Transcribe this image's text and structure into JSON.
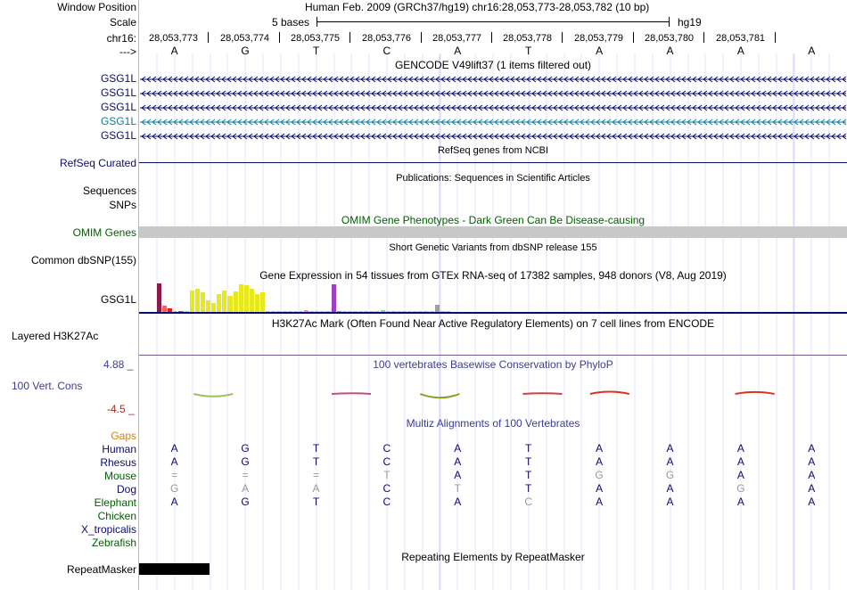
{
  "colors": {
    "gene_blue": "#0b0b70",
    "gene_teal": "#0b7d9c",
    "omim_green": "#006000",
    "cons_blue": "#3c3c96",
    "cons_red": "#a02828",
    "gaps_orange": "#e08000",
    "guideline": "#d0d0ff",
    "omim_gray": "#c8c8c8"
  },
  "header": {
    "window_position_label": "Window Position",
    "window_position_value": "Human Feb. 2009 (GRCh37/hg19)   chr16:28,053,773-28,053,782 (10 bp)",
    "scale_label": "Scale",
    "scale_text": "5 bases",
    "scale_assembly": "hg19",
    "chrom_label": "chr16:",
    "strand_label": "--->",
    "positions": [
      "28,053,773",
      "28,053,774",
      "28,053,775",
      "28,053,776",
      "28,053,777",
      "28,053,778",
      "28,053,779",
      "28,053,780",
      "28,053,781"
    ],
    "bases": [
      "A",
      "G",
      "T",
      "C",
      "A",
      "T",
      "A",
      "A",
      "A",
      "A"
    ]
  },
  "gencode": {
    "title": "GENCODE V49lift37 (1 items filtered out)",
    "genes": [
      {
        "label": "GSG1L",
        "color": "#0b0b70"
      },
      {
        "label": "GSG1L",
        "color": "#0b0b70"
      },
      {
        "label": "GSG1L",
        "color": "#0b0b70"
      },
      {
        "label": "GSG1L",
        "color": "#0b7d9c"
      },
      {
        "label": "GSG1L",
        "color": "#0b0b70"
      }
    ]
  },
  "refseq": {
    "title": "RefSeq genes from NCBI",
    "label": "RefSeq Curated"
  },
  "publications": {
    "title": "Publications: Sequences in Scientific Articles",
    "label_sequences": "Sequences",
    "label_snps": "SNPs"
  },
  "omim": {
    "title": "OMIM Gene Phenotypes - Dark Green Can Be Disease-causing",
    "label": "OMIM Genes"
  },
  "dbsnp": {
    "title": "Short Genetic Variants from dbSNP release 155",
    "label": "Common dbSNP(155)"
  },
  "gtex": {
    "title": "Gene Expression in 54 tissues from GTEx RNA-seq of 17382 samples, 948 donors (V8, Aug 2019)",
    "label": "GSG1L",
    "levels": [
      {
        "v": 1.0,
        "c": "#8b1a4a"
      },
      {
        "v": 0.22,
        "c": "#ff6050"
      },
      {
        "v": 0.12,
        "c": "#e02020"
      },
      {
        "v": 0.02,
        "c": "#ffb080"
      },
      {
        "v": 0.02,
        "c": "#e04040"
      },
      {
        "v": 0.02,
        "c": "#c0c0c0"
      },
      {
        "v": 0.75,
        "c": "#e8e820"
      },
      {
        "v": 0.82,
        "c": "#e8e820"
      },
      {
        "v": 0.7,
        "c": "#e8e820"
      },
      {
        "v": 0.4,
        "c": "#e8e820"
      },
      {
        "v": 0.32,
        "c": "#e8e820"
      },
      {
        "v": 0.62,
        "c": "#e8e820"
      },
      {
        "v": 0.75,
        "c": "#e8e820"
      },
      {
        "v": 0.55,
        "c": "#e8e820"
      },
      {
        "v": 0.72,
        "c": "#e8e820"
      },
      {
        "v": 0.98,
        "c": "#e8e820"
      },
      {
        "v": 0.95,
        "c": "#e8e820"
      },
      {
        "v": 0.8,
        "c": "#e8e820"
      },
      {
        "v": 0.62,
        "c": "#e8e820"
      },
      {
        "v": 0.68,
        "c": "#e8e820"
      },
      {
        "v": 0.02,
        "c": "#c0c0c0"
      },
      {
        "v": 0.02,
        "c": "#c0c0c0"
      },
      {
        "v": 0.02,
        "c": "#c0c0c0"
      },
      {
        "v": 0.02,
        "c": "#c0c0c0"
      },
      {
        "v": 0.02,
        "c": "#c0c0c0"
      },
      {
        "v": 0.02,
        "c": "#c0c0c0"
      },
      {
        "v": 0.02,
        "c": "#c0c0c0"
      },
      {
        "v": 0.05,
        "c": "#ff80c0"
      },
      {
        "v": 0.04,
        "c": "#c0c0c0"
      },
      {
        "v": 0.03,
        "c": "#c0c0c0"
      },
      {
        "v": 0.04,
        "c": "#c0c0c0"
      },
      {
        "v": 0.03,
        "c": "#c0c0c0"
      },
      {
        "v": 0.98,
        "c": "#a040c0"
      },
      {
        "v": 0.04,
        "c": "#60c060"
      },
      {
        "v": 0.03,
        "c": "#c0c0c0"
      },
      {
        "v": 0.03,
        "c": "#c0c0c0"
      },
      {
        "v": 0.03,
        "c": "#c0c0c0"
      },
      {
        "v": 0.03,
        "c": "#c0c0c0"
      },
      {
        "v": 0.03,
        "c": "#c0c0c0"
      },
      {
        "v": 0.03,
        "c": "#c0c0c0"
      },
      {
        "v": 0.03,
        "c": "#c0c0c0"
      },
      {
        "v": 0.05,
        "c": "#80d0a0"
      },
      {
        "v": 0.03,
        "c": "#c0c0c0"
      },
      {
        "v": 0.04,
        "c": "#80c0ff"
      },
      {
        "v": 0.03,
        "c": "#c0c0c0"
      },
      {
        "v": 0.03,
        "c": "#c0c0c0"
      },
      {
        "v": 0.03,
        "c": "#c0c0c0"
      },
      {
        "v": 0.03,
        "c": "#c0c0c0"
      },
      {
        "v": 0.03,
        "c": "#c0c0c0"
      },
      {
        "v": 0.03,
        "c": "#c0c0c0"
      },
      {
        "v": 0.03,
        "c": "#c0c0c0"
      },
      {
        "v": 0.24,
        "c": "#a0a0a0"
      },
      {
        "v": 0.03,
        "c": "#c0c0c0"
      },
      {
        "v": 0.03,
        "c": "#c0c0c0"
      }
    ]
  },
  "h3k27ac": {
    "title": "H3K27Ac Mark (Often Found Near Active Regulatory Elements) on 7 cell lines from ENCODE",
    "label": "Layered H3K27Ac"
  },
  "conservation": {
    "title": "100 vertebrates Basewise Conservation by PhyloP",
    "label": "100 Vert. Cons",
    "max_label": "4.88 _",
    "min_label": "-4.5 _",
    "scores": [
      {
        "v": -0.4,
        "c": "#a0c060"
      },
      {
        "v": 0.1,
        "c": "#c05080"
      },
      {
        "v": -0.6,
        "c": "#80a020"
      },
      {
        "v": 0.1,
        "c": "#d04040"
      },
      {
        "v": 0.35,
        "c": "#e03020"
      },
      {
        "v": 0.3,
        "c": "#e03020"
      }
    ]
  },
  "multiz": {
    "title": "Multiz Alignments of 100 Vertebrates",
    "gaps_label": "Gaps",
    "species": [
      {
        "name": "Human",
        "color": "#0b0b70",
        "bases": [
          "A",
          "G",
          "T",
          "C",
          "A",
          "T",
          "A",
          "A",
          "A",
          "A"
        ],
        "faded": []
      },
      {
        "name": "Rhesus",
        "color": "#0b0b70",
        "bases": [
          "A",
          "G",
          "T",
          "C",
          "A",
          "T",
          "A",
          "A",
          "A",
          "A"
        ],
        "faded": []
      },
      {
        "name": "Mouse",
        "color": "#006000",
        "bases": [
          "=",
          "=",
          "=",
          "T",
          "A",
          "T",
          "G",
          "G",
          "A",
          "A"
        ],
        "faded": [
          0,
          1,
          2,
          3,
          6,
          7
        ]
      },
      {
        "name": "Dog",
        "color": "#0b0b70",
        "bases": [
          "G",
          "A",
          "A",
          "C",
          "T",
          "T",
          "A",
          "A",
          "G",
          "A"
        ],
        "faded": [
          0,
          1,
          2,
          4,
          8
        ]
      },
      {
        "name": "Elephant",
        "color": "#006000",
        "bases": [
          "A",
          "G",
          "T",
          "C",
          "A",
          "C",
          "A",
          "A",
          "A",
          "A"
        ],
        "faded": [
          5
        ]
      },
      {
        "name": "Chicken",
        "color": "#006000",
        "bases": [],
        "faded": []
      },
      {
        "name": "X_tropicalis",
        "color": "#0b0b70",
        "bases": [],
        "faded": []
      },
      {
        "name": "Zebrafish",
        "color": "#006000",
        "bases": [],
        "faded": []
      }
    ]
  },
  "repeatmasker": {
    "title": "Repeating Elements by RepeatMasker",
    "label": "RepeatMasker"
  }
}
